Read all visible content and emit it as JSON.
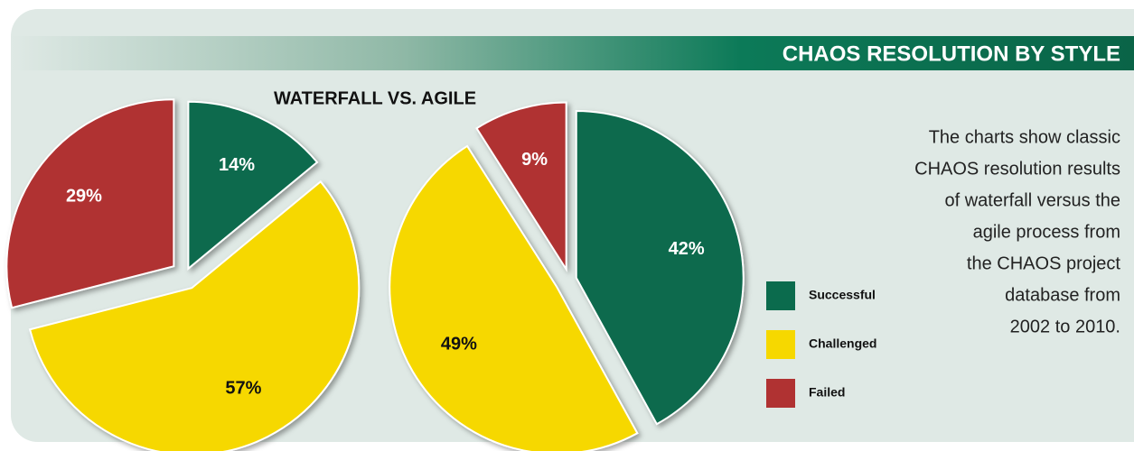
{
  "header": "CHAOS RESOLUTION BY STYLE",
  "title": "WATERFALL VS. AGILE",
  "description": [
    "The charts show classic",
    "CHAOS resolution results",
    "of waterfall versus the",
    "agile process from",
    "the CHAOS project",
    "database from",
    "2002 to 2010."
  ],
  "chart_data": [
    {
      "type": "pie",
      "categories": [
        "Successful",
        "Challenged",
        "Failed"
      ],
      "values": [
        14,
        57,
        29
      ],
      "value_labels": [
        "14%",
        "57%",
        "29%"
      ],
      "colors": [
        "#0b6b4d",
        "#f6d800",
        "#b03232"
      ]
    },
    {
      "type": "pie",
      "categories": [
        "Successful",
        "Challenged",
        "Failed"
      ],
      "values": [
        42,
        49,
        9
      ],
      "value_labels": [
        "42%",
        "49%",
        "9%"
      ],
      "colors": [
        "#0b6b4d",
        "#f6d800",
        "#b03232"
      ]
    }
  ]
}
